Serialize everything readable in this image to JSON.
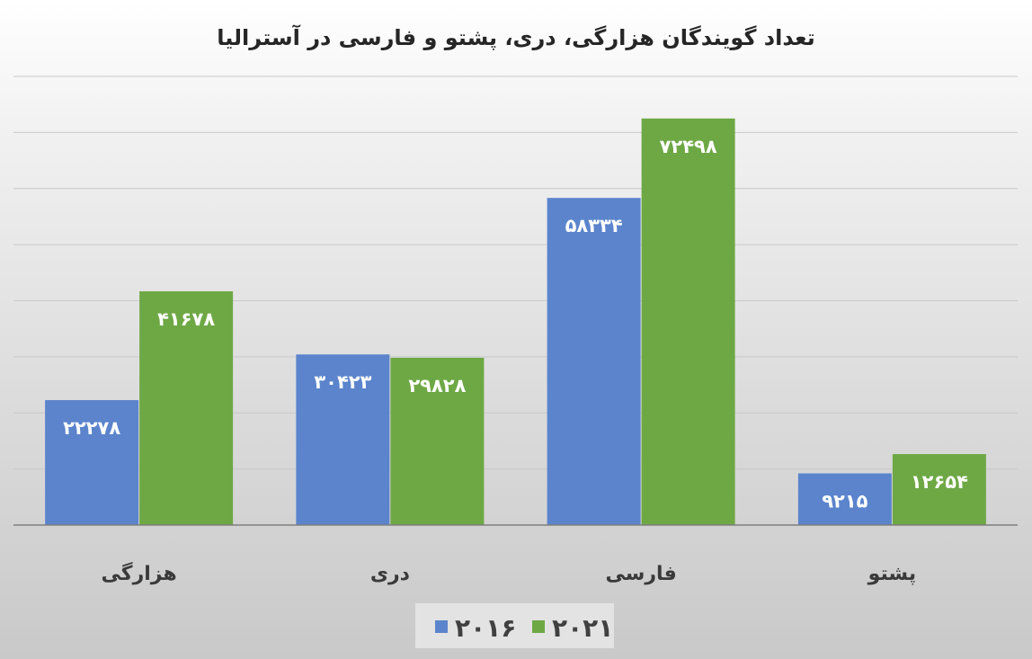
{
  "chart_data": {
    "type": "bar",
    "title": "تعداد گویندگان هزارگی، دری، پشتو و فارسی در آسترالیا",
    "categories": [
      "هزارگی",
      "دری",
      "فارسی",
      "پشتو"
    ],
    "series": [
      {
        "name": "۲۰۱۶",
        "color": "#5b84cc",
        "values": [
          22278,
          30423,
          58334,
          9215
        ],
        "labels": [
          "۲۲۲۷۸",
          "۳۰۴۲۳",
          "۵۸۳۳۴",
          "۹۲۱۵"
        ]
      },
      {
        "name": "۲۰۲۱",
        "color": "#6ea845",
        "values": [
          41678,
          29828,
          72498,
          12654
        ],
        "labels": [
          "۴۱۶۷۸",
          "۲۹۸۲۸",
          "۷۲۴۹۸",
          "۱۲۶۵۴"
        ]
      }
    ],
    "ylim": [
      0,
      80000
    ],
    "grid": true,
    "legend_position": "bottom"
  }
}
